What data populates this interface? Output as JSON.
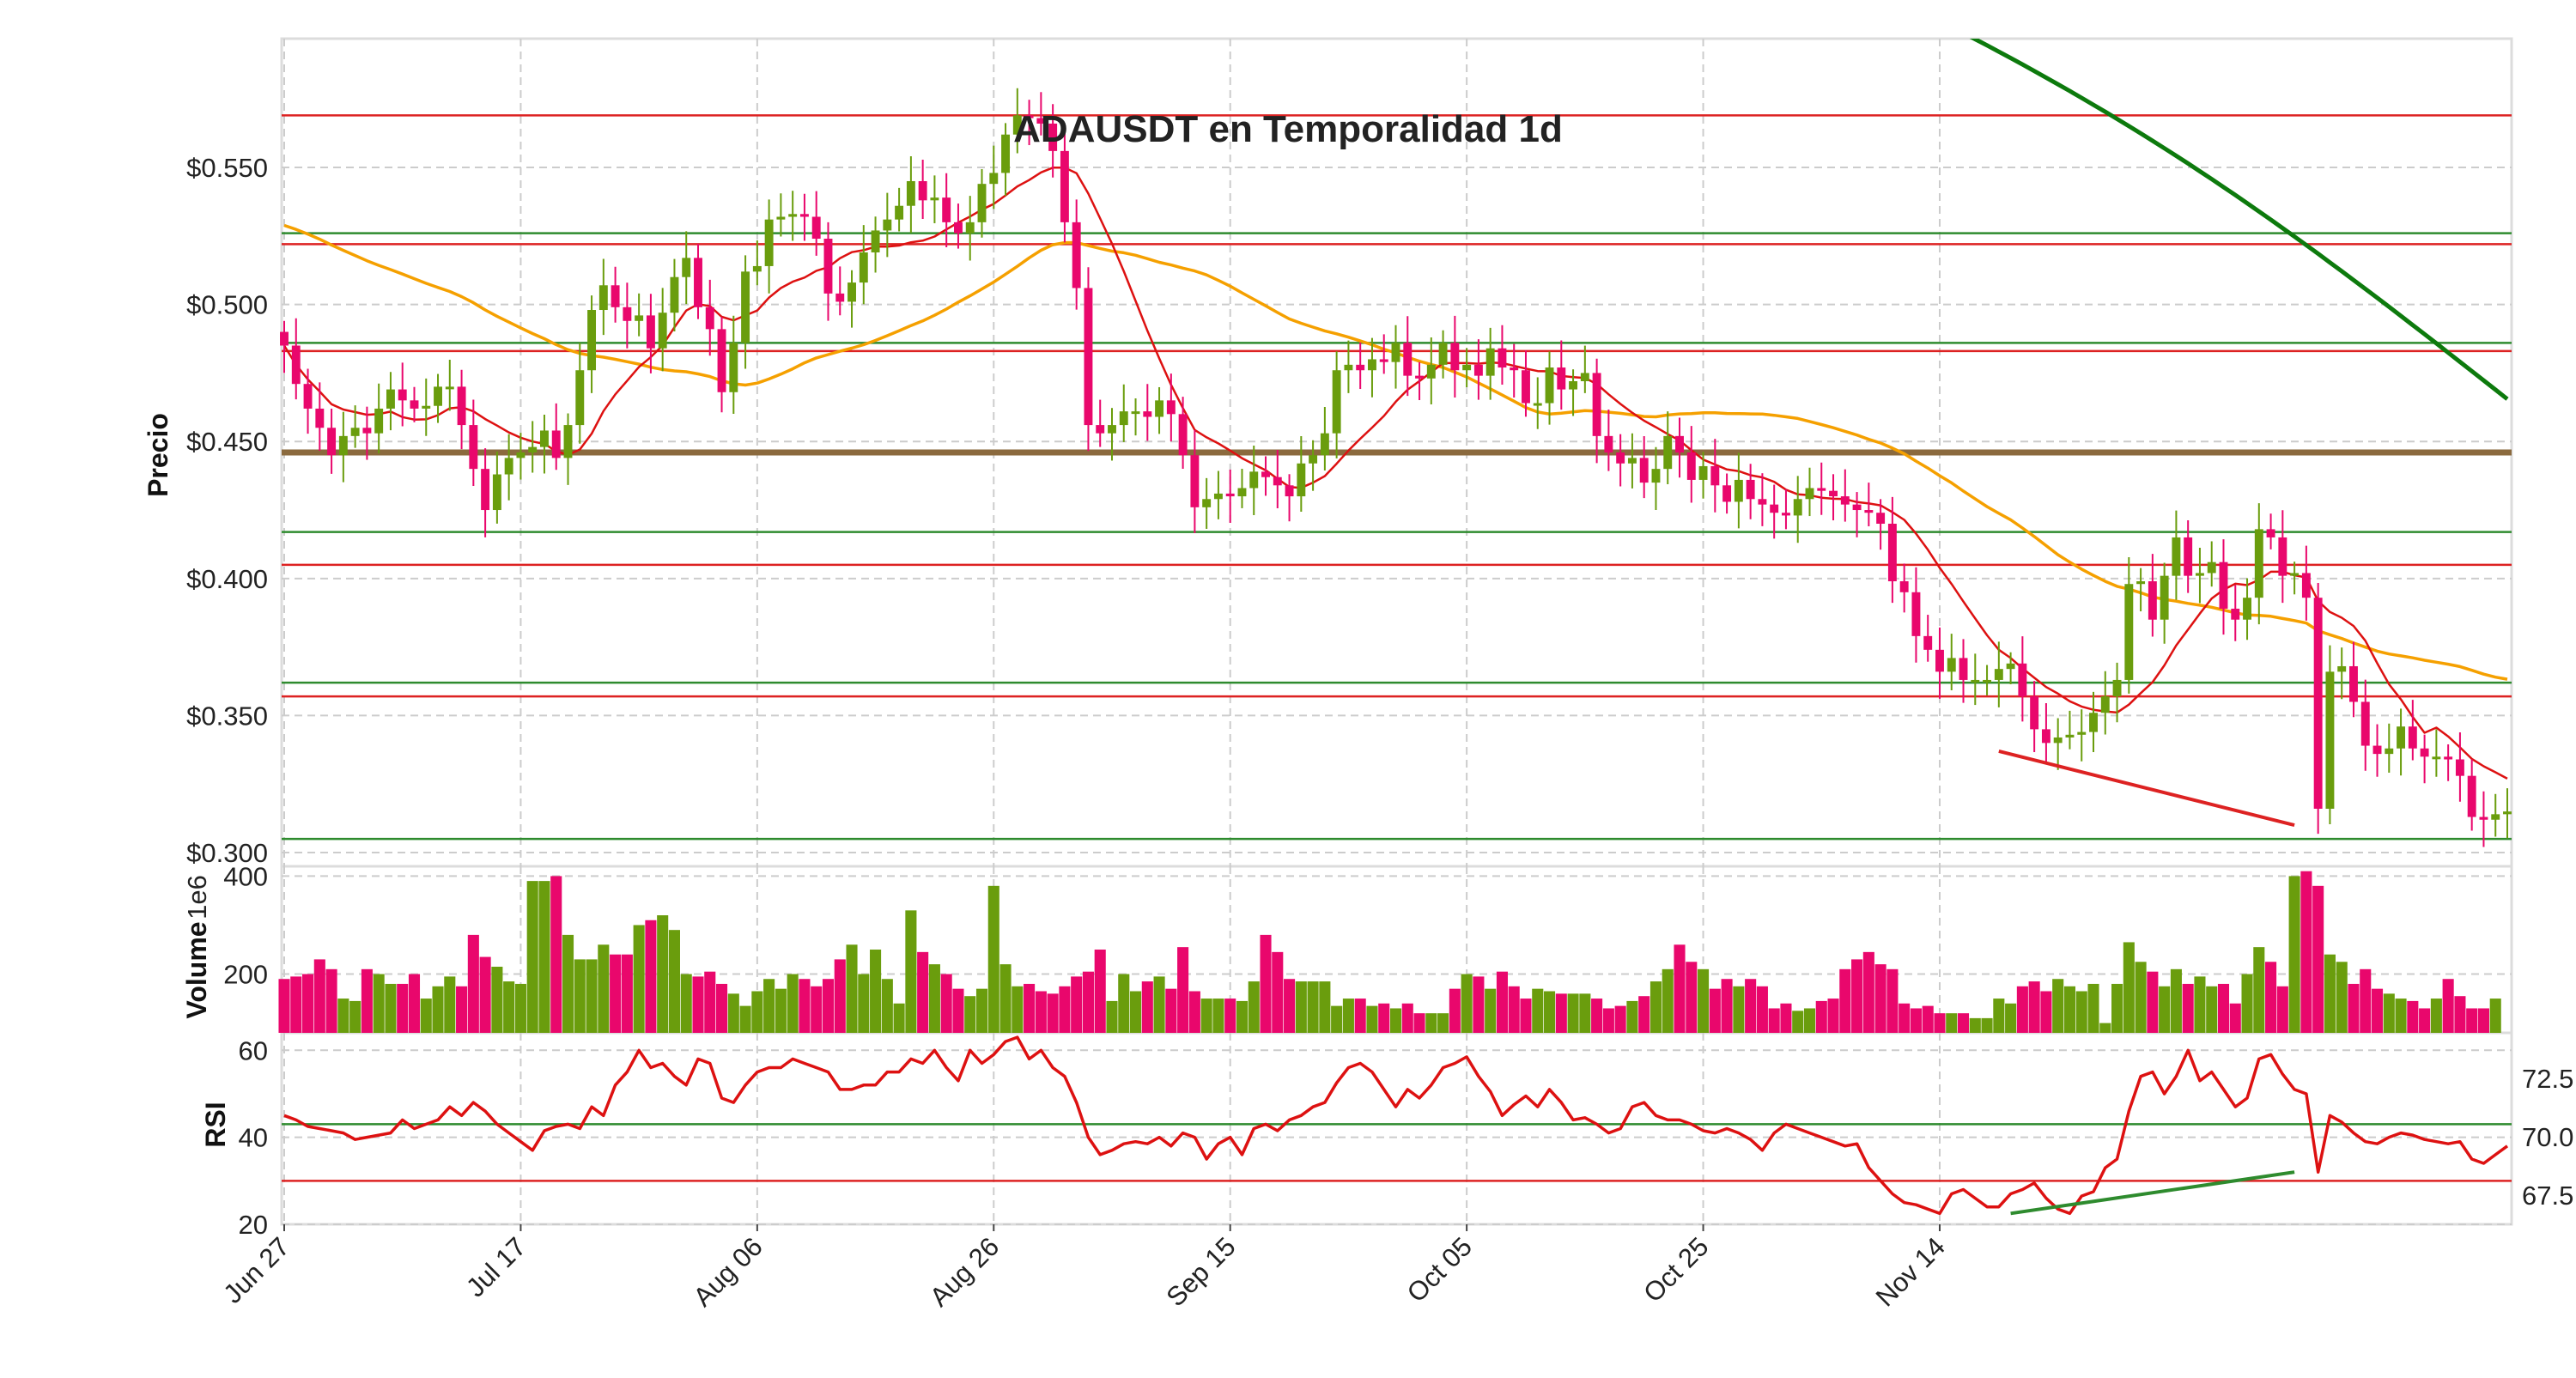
{
  "chart_data": {
    "type": "candlestick",
    "title": "ADAUSDT en Temporalidad 1d",
    "colors": {
      "up": "#6a9d0d",
      "down": "#e9076c",
      "ma_fast": "#dd1111",
      "ma_slow": "#f5a000",
      "ma_long": "#0d7a0d",
      "rsi": "#dd1111",
      "support": "#2e8b2e",
      "resistance": "#dd2222",
      "key_level": "#8b6a3e",
      "grid": "#cccccc"
    },
    "x_ticks": [
      "Jun 27",
      "Jul 17",
      "Aug 06",
      "Aug 26",
      "Sep 15",
      "Oct 05",
      "Oct 25",
      "Nov 14"
    ],
    "price_panel": {
      "ylabel": "Precio",
      "yticks": [
        "$0.300",
        "$0.350",
        "$0.400",
        "$0.450",
        "$0.500",
        "$0.550"
      ],
      "ylim": [
        0.295,
        0.597
      ],
      "closes": [
        0.485,
        0.471,
        0.462,
        0.455,
        0.445,
        0.452,
        0.455,
        0.453,
        0.462,
        0.469,
        0.465,
        0.462,
        0.463,
        0.47,
        0.47,
        0.456,
        0.44,
        0.425,
        0.438,
        0.444,
        0.446,
        0.448,
        0.454,
        0.444,
        0.456,
        0.476,
        0.498,
        0.507,
        0.499,
        0.494,
        0.496,
        0.484,
        0.497,
        0.51,
        0.517,
        0.499,
        0.491,
        0.468,
        0.486,
        0.512,
        0.514,
        0.531,
        0.532,
        0.533,
        0.532,
        0.524,
        0.504,
        0.501,
        0.508,
        0.519,
        0.527,
        0.531,
        0.536,
        0.545,
        0.538,
        0.539,
        0.53,
        0.526,
        0.53,
        0.544,
        0.548,
        0.562,
        0.569,
        0.568,
        0.566,
        0.556,
        0.53,
        0.506,
        0.456,
        0.453,
        0.456,
        0.461,
        0.461,
        0.459,
        0.465,
        0.46,
        0.445,
        0.426,
        0.429,
        0.431,
        0.43,
        0.433,
        0.439,
        0.437,
        0.434,
        0.43,
        0.442,
        0.445,
        0.453,
        0.476,
        0.478,
        0.476,
        0.48,
        0.479,
        0.486,
        0.474,
        0.473,
        0.478,
        0.486,
        0.476,
        0.478,
        0.474,
        0.484,
        0.477,
        0.476,
        0.464,
        0.464,
        0.477,
        0.469,
        0.472,
        0.475,
        0.452,
        0.446,
        0.442,
        0.444,
        0.435,
        0.44,
        0.452,
        0.446,
        0.436,
        0.441,
        0.434,
        0.428,
        0.436,
        0.429,
        0.427,
        0.424,
        0.423,
        0.429,
        0.433,
        0.432,
        0.43,
        0.427,
        0.425,
        0.424,
        0.42,
        0.399,
        0.395,
        0.379,
        0.374,
        0.366,
        0.371,
        0.363,
        0.363,
        0.363,
        0.367,
        0.369,
        0.357,
        0.345,
        0.34,
        0.342,
        0.343,
        0.344,
        0.351,
        0.357,
        0.363,
        0.398,
        0.399,
        0.385,
        0.401,
        0.415,
        0.401,
        0.402,
        0.406,
        0.389,
        0.385,
        0.393,
        0.418,
        0.415,
        0.401,
        0.402,
        0.393,
        0.316,
        0.366,
        0.368,
        0.355,
        0.339,
        0.336,
        0.338,
        0.346,
        0.338,
        0.335,
        0.335,
        0.334,
        0.328,
        0.313,
        0.312,
        0.314,
        0.315
      ],
      "horizontal_levels": [
        {
          "value": 0.569,
          "kind": "resistance"
        },
        {
          "value": 0.526,
          "kind": "support"
        },
        {
          "value": 0.522,
          "kind": "resistance"
        },
        {
          "value": 0.486,
          "kind": "support"
        },
        {
          "value": 0.483,
          "kind": "resistance"
        },
        {
          "value": 0.446,
          "kind": "key_level"
        },
        {
          "value": 0.417,
          "kind": "support"
        },
        {
          "value": 0.405,
          "kind": "resistance"
        },
        {
          "value": 0.362,
          "kind": "support"
        },
        {
          "value": 0.357,
          "kind": "resistance"
        },
        {
          "value": 0.305,
          "kind": "support"
        }
      ],
      "divergence_line": {
        "from": {
          "index": 145,
          "price": 0.337
        },
        "to": {
          "index": 170,
          "price": 0.31
        }
      }
    },
    "volume_panel": {
      "ylabel": "Volume",
      "multiplier_label": "1e6",
      "yticks": [
        "200",
        "400"
      ],
      "ylim": [
        80,
        420
      ],
      "values": [
        190,
        195,
        200,
        230,
        210,
        150,
        145,
        210,
        200,
        180,
        180,
        200,
        150,
        175,
        195,
        175,
        280,
        235,
        215,
        185,
        180,
        390,
        390,
        400,
        280,
        230,
        230,
        260,
        240,
        240,
        300,
        310,
        320,
        290,
        200,
        195,
        205,
        180,
        160,
        135,
        165,
        190,
        170,
        200,
        190,
        175,
        190,
        230,
        260,
        200,
        250,
        190,
        140,
        330,
        245,
        220,
        200,
        170,
        155,
        170,
        380,
        220,
        175,
        180,
        165,
        160,
        175,
        195,
        205,
        250,
        145,
        200,
        165,
        185,
        195,
        170,
        255,
        165,
        150,
        150,
        150,
        145,
        185,
        280,
        245,
        190,
        185,
        185,
        185,
        135,
        150,
        150,
        135,
        140,
        130,
        140,
        120,
        120,
        120,
        170,
        200,
        195,
        170,
        205,
        175,
        150,
        170,
        165,
        160,
        160,
        160,
        150,
        130,
        135,
        145,
        155,
        185,
        210,
        260,
        225,
        210,
        170,
        190,
        175,
        190,
        175,
        130,
        140,
        125,
        130,
        145,
        150,
        210,
        230,
        245,
        220,
        210,
        140,
        130,
        135,
        120,
        120,
        120,
        110,
        110,
        150,
        140,
        175,
        185,
        165,
        190,
        175,
        165,
        180,
        100,
        180,
        265,
        225,
        205,
        175,
        210,
        180,
        195,
        175,
        180,
        140,
        200,
        255,
        225,
        175,
        400,
        410,
        380,
        240,
        225,
        180,
        210,
        170,
        160,
        150,
        145,
        130,
        150,
        190,
        155,
        130,
        130,
        150
      ],
      "closes_ref": "price_panel.closes"
    },
    "rsi_panel": {
      "ylabel": "RSI",
      "yticks_left": [
        "20",
        "40",
        "60"
      ],
      "yticks_right": [
        "67.5",
        "70.0",
        "72.5"
      ],
      "ylim": [
        20,
        64
      ],
      "upper_line": 43,
      "lower_line": 30,
      "values": [
        45,
        44,
        42.5,
        42,
        41.5,
        41,
        39.5,
        40,
        40.5,
        41,
        44,
        42,
        43,
        44,
        47,
        45,
        48,
        46,
        43,
        41,
        39,
        37,
        41.5,
        42.5,
        43,
        42,
        47,
        45,
        52,
        55,
        60,
        56,
        57,
        54,
        52,
        58,
        57,
        49,
        48,
        52,
        55,
        56,
        56,
        58,
        57,
        56,
        55,
        51,
        51,
        52,
        52,
        55,
        55,
        58,
        57,
        60,
        56,
        53,
        60,
        57,
        59,
        62,
        63,
        58,
        60,
        56,
        54,
        48,
        40,
        36,
        37,
        38.5,
        39,
        38.5,
        40,
        38,
        41,
        40,
        35,
        38.5,
        40,
        36,
        42,
        43,
        41.5,
        44,
        45,
        47,
        48,
        52.5,
        56,
        57,
        55,
        51,
        47,
        51,
        49,
        52,
        56,
        57,
        58.5,
        54,
        50.5,
        45,
        47.5,
        49.5,
        47,
        51,
        48,
        44,
        44.5,
        43,
        41,
        42,
        47,
        48,
        45,
        44,
        44,
        43,
        41.5,
        41,
        42,
        41,
        39.5,
        37,
        41,
        43,
        42,
        41,
        40,
        39,
        38,
        38.5,
        33,
        30,
        27,
        25,
        24.5,
        23.5,
        22.5,
        27,
        28,
        26,
        24,
        24,
        27,
        28,
        29.5,
        26,
        23.5,
        22.5,
        26.5,
        27.5,
        33,
        35,
        46,
        54,
        55,
        50,
        54,
        60,
        53,
        55,
        51,
        47,
        49,
        58,
        59,
        54.5,
        51,
        50,
        32,
        45,
        43.5,
        41,
        39,
        38.5,
        40,
        41,
        40.5,
        39.5,
        39,
        38.5,
        39,
        35,
        34,
        36,
        38
      ]
    }
  }
}
